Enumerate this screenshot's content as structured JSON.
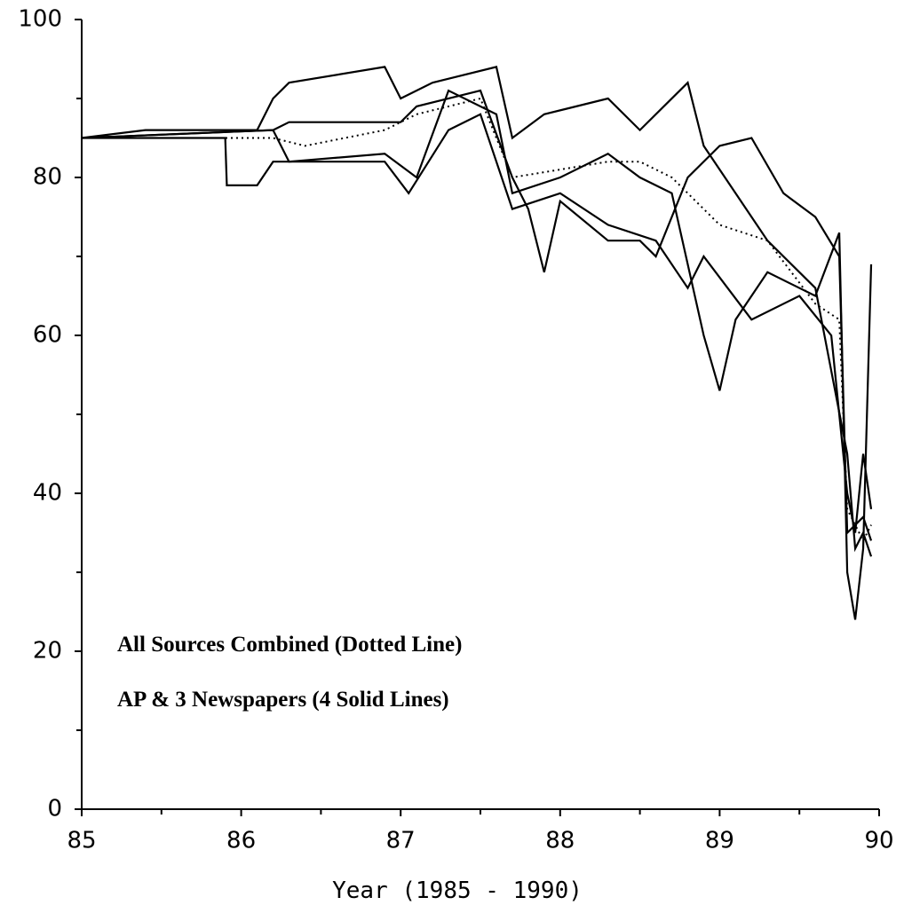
{
  "chart_data": {
    "type": "line",
    "xlabel": "Year  (1985 - 1990)",
    "annotations": [
      "All Sources Combined (Dotted Line)",
      "AP & 3 Newspapers (4 Solid Lines)"
    ],
    "xlim": [
      85,
      90
    ],
    "xticks": [
      85,
      86,
      87,
      88,
      89,
      90
    ],
    "xminor": [
      85.5,
      86.5,
      87.5,
      88.5,
      89.5
    ],
    "ylim": [
      0,
      100
    ],
    "yticks": [
      0,
      20,
      40,
      60,
      80,
      100
    ],
    "yminor": [
      10,
      30,
      50,
      70,
      90
    ],
    "series": [
      {
        "color": "#000000",
        "style": "solid",
        "x": [
          85,
          85.4,
          86.1,
          86.2,
          86.3,
          86.9,
          87.0,
          87.2,
          87.6,
          87.7,
          87.9,
          88.3,
          88.5,
          88.8,
          88.9,
          89.3,
          89.6,
          89.8,
          89.85,
          89.9,
          89.95
        ],
        "values": [
          85,
          86,
          86,
          90,
          92,
          94,
          90,
          92,
          94,
          85,
          88,
          90,
          86,
          92,
          84,
          72,
          66,
          45,
          33,
          35,
          32
        ]
      },
      {
        "color": "#000000",
        "style": "solid",
        "x": [
          85,
          85.9,
          85.91,
          86.1,
          86.2,
          86.9,
          87.05,
          87.3,
          87.5,
          87.7,
          88.0,
          88.3,
          88.6,
          88.8,
          88.9,
          89.2,
          89.5,
          89.7,
          89.8,
          89.85,
          89.9,
          89.95
        ],
        "values": [
          85,
          85,
          79,
          79,
          82,
          82,
          78,
          86,
          88,
          76,
          78,
          74,
          72,
          66,
          70,
          62,
          65,
          60,
          40,
          35,
          45,
          38
        ]
      },
      {
        "color": "#000000",
        "style": "solid",
        "x": [
          85,
          86.2,
          86.3,
          86.9,
          87.1,
          87.3,
          87.6,
          87.7,
          88.0,
          88.3,
          88.5,
          88.7,
          88.9,
          89.0,
          89.1,
          89.3,
          89.6,
          89.75,
          89.8,
          89.85,
          89.9,
          89.95
        ],
        "values": [
          85,
          86,
          82,
          83,
          80,
          91,
          88,
          78,
          80,
          83,
          80,
          78,
          60,
          53,
          62,
          68,
          65,
          73,
          30,
          24,
          33,
          69
        ]
      },
      {
        "color": "#000000",
        "style": "solid",
        "x": [
          85,
          86.2,
          86.3,
          87.0,
          87.1,
          87.5,
          87.7,
          87.8,
          87.9,
          88.0,
          88.3,
          88.5,
          88.6,
          88.8,
          89.0,
          89.2,
          89.4,
          89.6,
          89.75,
          89.8,
          89.9,
          89.95
        ],
        "values": [
          85,
          86,
          87,
          87,
          89,
          91,
          80,
          76,
          68,
          77,
          72,
          72,
          70,
          80,
          84,
          85,
          78,
          75,
          70,
          35,
          37,
          34
        ]
      },
      {
        "color": "#000000",
        "style": "dotted",
        "x": [
          85,
          86.2,
          86.4,
          86.9,
          87.1,
          87.5,
          87.7,
          88.0,
          88.3,
          88.5,
          88.7,
          89.0,
          89.3,
          89.6,
          89.75,
          89.8,
          89.9,
          89.95
        ],
        "values": [
          85,
          85,
          84,
          86,
          88,
          90,
          80,
          81,
          82,
          82,
          80,
          74,
          72,
          64,
          62,
          38,
          34,
          36
        ]
      }
    ]
  }
}
